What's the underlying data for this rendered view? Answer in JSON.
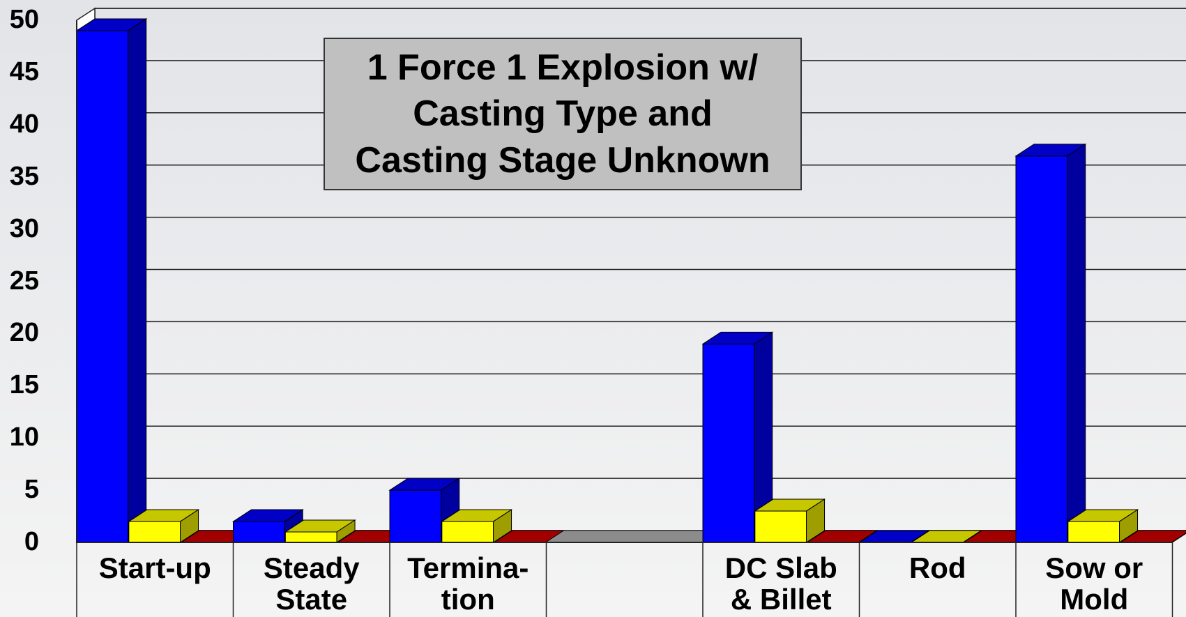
{
  "chart_data": {
    "type": "bar3d",
    "title": "1 Force 1 Explosion w/\nCasting Type and\nCasting Stage Unknown",
    "categories": [
      "Start-up",
      "Steady\nState",
      "Termina-\ntion",
      null,
      "DC Slab\n& Billet",
      "Rod",
      "Sow or\nMold"
    ],
    "series": [
      {
        "color": "#0000ff",
        "values": [
          49,
          2,
          5,
          null,
          19,
          0,
          37
        ]
      },
      {
        "color": "#ffff00",
        "values": [
          2,
          1,
          2,
          null,
          3,
          0,
          2
        ]
      },
      {
        "color": "#d00000",
        "values": [
          0,
          0,
          0,
          null,
          0,
          0,
          0
        ]
      }
    ],
    "ylim": [
      0,
      50
    ],
    "yticks": [
      0,
      5,
      10,
      15,
      20,
      25,
      30,
      35,
      40,
      45,
      50
    ],
    "grid": true
  }
}
